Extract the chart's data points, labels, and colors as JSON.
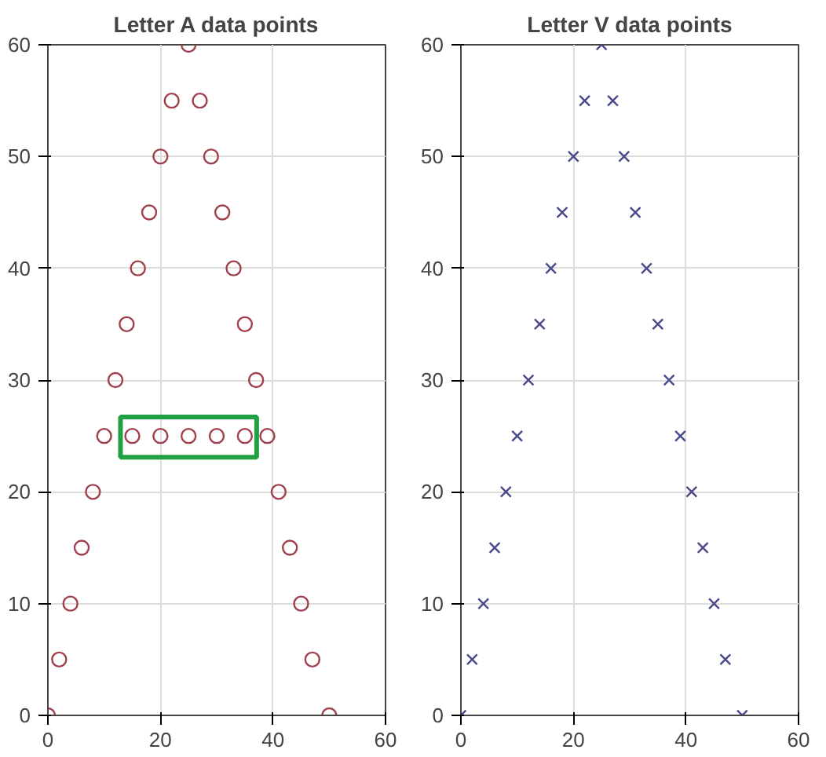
{
  "chart_data": [
    {
      "type": "scatter",
      "title": "Letter A data points",
      "x": [
        0,
        2,
        4,
        6,
        8,
        10,
        12,
        14,
        16,
        18,
        20,
        22,
        25,
        27,
        29,
        31,
        33,
        35,
        37,
        39,
        41,
        43,
        45,
        47,
        50,
        15,
        20,
        25,
        30,
        35
      ],
      "values": [
        0,
        5,
        10,
        15,
        20,
        25,
        30,
        35,
        40,
        45,
        50,
        55,
        60,
        55,
        50,
        45,
        40,
        35,
        30,
        25,
        20,
        15,
        10,
        5,
        0,
        25,
        25,
        25,
        25,
        25
      ],
      "color": "#a0404c",
      "marker": "circle",
      "xlim": [
        0,
        60
      ],
      "ylim": [
        0,
        60
      ],
      "xticks": [
        0,
        20,
        40,
        60
      ],
      "yticks": [
        0,
        10,
        20,
        30,
        40,
        50,
        60
      ],
      "grid": true
    },
    {
      "type": "scatter",
      "title": "Letter V data points",
      "x": [
        0,
        2,
        4,
        6,
        8,
        10,
        12,
        14,
        16,
        18,
        20,
        22,
        25,
        27,
        29,
        31,
        33,
        35,
        37,
        39,
        41,
        43,
        45,
        47,
        50
      ],
      "values": [
        0,
        5,
        10,
        15,
        20,
        25,
        30,
        35,
        40,
        45,
        50,
        55,
        60,
        55,
        50,
        45,
        40,
        35,
        30,
        25,
        20,
        15,
        10,
        5,
        0
      ],
      "color": "#4a4a8a",
      "marker": "cross",
      "xlim": [
        0,
        60
      ],
      "ylim": [
        0,
        60
      ],
      "xticks": [
        0,
        20,
        40,
        60
      ],
      "yticks": [
        0,
        10,
        20,
        30,
        40,
        50,
        60
      ],
      "grid": true
    }
  ]
}
